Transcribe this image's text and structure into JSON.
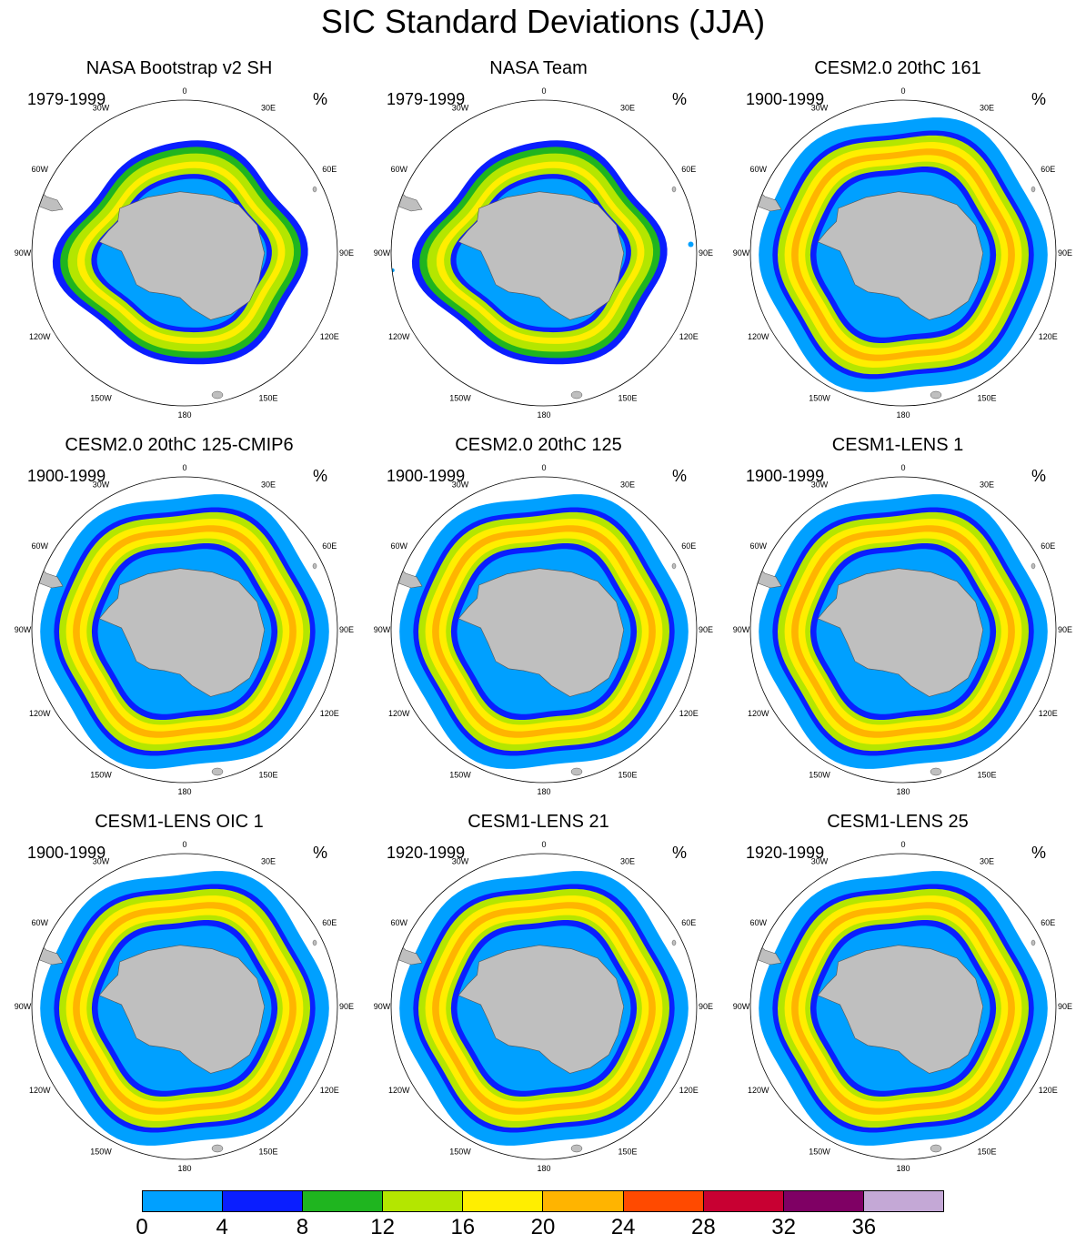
{
  "title": "SIC Standard Deviations (JJA)",
  "unit": "%",
  "panels": [
    {
      "title": "NASA Bootstrap v2 SH",
      "period": "1979-1999",
      "style": "bootstrap"
    },
    {
      "title": "NASA Team",
      "period": "1979-1999",
      "style": "team"
    },
    {
      "title": "CESM2.0 20thC 161",
      "period": "1900-1999",
      "style": "model"
    },
    {
      "title": "CESM2.0 20thC 125-CMIP6",
      "period": "1900-1999",
      "style": "model"
    },
    {
      "title": "CESM2.0 20thC 125",
      "period": "1900-1999",
      "style": "model"
    },
    {
      "title": "CESM1-LENS 1",
      "period": "1900-1999",
      "style": "model"
    },
    {
      "title": "CESM1-LENS OIC 1",
      "period": "1900-1999",
      "style": "model"
    },
    {
      "title": "CESM1-LENS 21",
      "period": "1920-1999",
      "style": "model"
    },
    {
      "title": "CESM1-LENS 25",
      "period": "1920-1999",
      "style": "model"
    }
  ],
  "longitude_labels": [
    "0",
    "30E",
    "60E",
    "90E",
    "120E",
    "150E",
    "180",
    "150W",
    "120W",
    "90W",
    "60W",
    "30W"
  ],
  "colorbar": {
    "levels": [
      "0",
      "4",
      "8",
      "12",
      "16",
      "20",
      "24",
      "28",
      "32",
      "36"
    ],
    "colors": [
      "#00a0ff",
      "#0a1eff",
      "#1fb51f",
      "#b4e600",
      "#ffee00",
      "#ffb400",
      "#ff4a00",
      "#c80032",
      "#7f0064",
      "#c4a8d6"
    ]
  },
  "land_color": "#bfbfbf"
}
